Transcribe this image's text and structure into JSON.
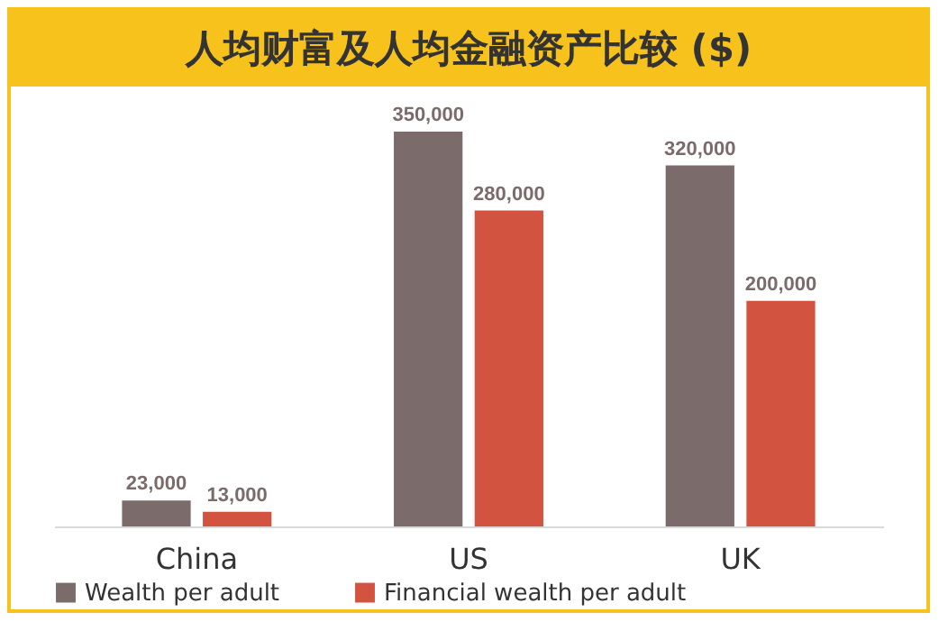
{
  "chart_data": {
    "type": "bar",
    "title": "人均财富及人均金融资产比较 ($)",
    "categories": [
      "China",
      "US",
      "UK"
    ],
    "series": [
      {
        "name": "Wealth per adult",
        "color": "#7b6b6b",
        "values": [
          23000,
          350000,
          320000
        ],
        "value_labels": [
          "23,000",
          "350,000",
          "320,000"
        ]
      },
      {
        "name": "Financial wealth per adult",
        "color": "#d2533f",
        "values": [
          13000,
          280000,
          200000
        ],
        "value_labels": [
          "13,000",
          "280,000",
          "200,000"
        ]
      }
    ],
    "legend": "bottom",
    "grid": false,
    "tick_labels": "x"
  }
}
